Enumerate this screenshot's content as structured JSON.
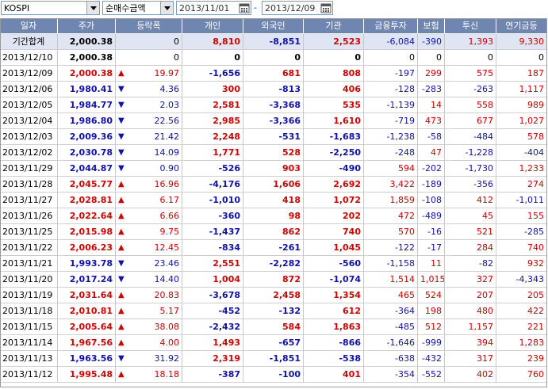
{
  "toolbar": {
    "market": "KOSPI",
    "metric": "순매수금액",
    "date_from": "2013/11/01",
    "separator": "-",
    "date_to": "2013/12/09"
  },
  "columns": [
    "일자",
    "주가",
    "등락폭",
    "개인",
    "외국인",
    "기관",
    "금융투자",
    "보험",
    "투신",
    "연기금등"
  ],
  "colors": {
    "header_bg": "#6f86b0",
    "summary_bg": "#dfe6f2",
    "up": "#d40000",
    "down": "#1010b0"
  },
  "rows": [
    {
      "date": "기간합계",
      "price": "2,000.38",
      "dir": "",
      "chg": "0",
      "ind": "8,810",
      "for": "-8,851",
      "inst": "2,523",
      "fin": "-6,084",
      "ins": "-390",
      "trust": "1,393",
      "pens": "9,330"
    },
    {
      "date": "2013/12/10",
      "price": "2,000.38",
      "dir": "",
      "chg": "0",
      "ind": "0",
      "for": "0",
      "inst": "0",
      "fin": "0",
      "ins": "0",
      "trust": "0",
      "pens": "0"
    },
    {
      "date": "2013/12/09",
      "price": "2,000.38",
      "dir": "up",
      "chg": "19.97",
      "ind": "-1,656",
      "for": "681",
      "inst": "808",
      "fin": "-197",
      "ins": "299",
      "trust": "575",
      "pens": "187"
    },
    {
      "date": "2013/12/06",
      "price": "1,980.41",
      "dir": "down",
      "chg": "4.36",
      "ind": "300",
      "for": "-813",
      "inst": "406",
      "fin": "-128",
      "ins": "-283",
      "trust": "-263",
      "pens": "1,117"
    },
    {
      "date": "2013/12/05",
      "price": "1,984.77",
      "dir": "down",
      "chg": "2.03",
      "ind": "2,581",
      "for": "-3,368",
      "inst": "535",
      "fin": "-1,139",
      "ins": "14",
      "trust": "558",
      "pens": "989"
    },
    {
      "date": "2013/12/04",
      "price": "1,986.80",
      "dir": "down",
      "chg": "22.56",
      "ind": "2,985",
      "for": "-3,366",
      "inst": "1,610",
      "fin": "-719",
      "ins": "473",
      "trust": "677",
      "pens": "1,027"
    },
    {
      "date": "2013/12/03",
      "price": "2,009.36",
      "dir": "down",
      "chg": "21.42",
      "ind": "2,248",
      "for": "-531",
      "inst": "-1,683",
      "fin": "-1,238",
      "ins": "-58",
      "trust": "-484",
      "pens": "578"
    },
    {
      "date": "2013/12/02",
      "price": "2,030.78",
      "dir": "down",
      "chg": "14.09",
      "ind": "1,771",
      "for": "528",
      "inst": "-2,250",
      "fin": "-248",
      "ins": "47",
      "trust": "-1,228",
      "pens": "-404"
    },
    {
      "date": "2013/11/29",
      "price": "2,044.87",
      "dir": "down",
      "chg": "0.90",
      "ind": "-526",
      "for": "903",
      "inst": "-490",
      "fin": "594",
      "ins": "-202",
      "trust": "-1,730",
      "pens": "1,233"
    },
    {
      "date": "2013/11/28",
      "price": "2,045.77",
      "dir": "up",
      "chg": "16.96",
      "ind": "-4,176",
      "for": "1,606",
      "inst": "2,692",
      "fin": "3,422",
      "ins": "-189",
      "trust": "-356",
      "pens": "274"
    },
    {
      "date": "2013/11/27",
      "price": "2,028.81",
      "dir": "up",
      "chg": "6.17",
      "ind": "-1,010",
      "for": "418",
      "inst": "1,072",
      "fin": "1,859",
      "ins": "-108",
      "trust": "412",
      "pens": "-1,011"
    },
    {
      "date": "2013/11/26",
      "price": "2,022.64",
      "dir": "up",
      "chg": "6.66",
      "ind": "-360",
      "for": "98",
      "inst": "202",
      "fin": "472",
      "ins": "-489",
      "trust": "45",
      "pens": "155"
    },
    {
      "date": "2013/11/25",
      "price": "2,015.98",
      "dir": "up",
      "chg": "9.75",
      "ind": "-1,437",
      "for": "862",
      "inst": "740",
      "fin": "570",
      "ins": "-16",
      "trust": "521",
      "pens": "-285"
    },
    {
      "date": "2013/11/22",
      "price": "2,006.23",
      "dir": "up",
      "chg": "12.45",
      "ind": "-834",
      "for": "-261",
      "inst": "1,045",
      "fin": "-122",
      "ins": "-17",
      "trust": "284",
      "pens": "740"
    },
    {
      "date": "2013/11/21",
      "price": "1,993.78",
      "dir": "down",
      "chg": "23.46",
      "ind": "2,551",
      "for": "-2,282",
      "inst": "-560",
      "fin": "-1,158",
      "ins": "11",
      "trust": "-82",
      "pens": "932"
    },
    {
      "date": "2013/11/20",
      "price": "2,017.24",
      "dir": "down",
      "chg": "14.40",
      "ind": "1,004",
      "for": "872",
      "inst": "-1,074",
      "fin": "1,514",
      "ins": "1,015",
      "trust": "327",
      "pens": "-4,343"
    },
    {
      "date": "2013/11/19",
      "price": "2,031.64",
      "dir": "up",
      "chg": "20.83",
      "ind": "-3,678",
      "for": "2,458",
      "inst": "1,354",
      "fin": "465",
      "ins": "524",
      "trust": "207",
      "pens": "205"
    },
    {
      "date": "2013/11/18",
      "price": "2,010.81",
      "dir": "up",
      "chg": "5.17",
      "ind": "-452",
      "for": "-132",
      "inst": "612",
      "fin": "-364",
      "ins": "198",
      "trust": "480",
      "pens": "422"
    },
    {
      "date": "2013/11/15",
      "price": "2,005.64",
      "dir": "up",
      "chg": "38.08",
      "ind": "-2,432",
      "for": "584",
      "inst": "1,863",
      "fin": "-485",
      "ins": "512",
      "trust": "1,157",
      "pens": "221"
    },
    {
      "date": "2013/11/14",
      "price": "1,967.56",
      "dir": "up",
      "chg": "4.00",
      "ind": "1,493",
      "for": "-657",
      "inst": "-866",
      "fin": "-1,646",
      "ins": "-999",
      "trust": "394",
      "pens": "1,283"
    },
    {
      "date": "2013/11/13",
      "price": "1,963.56",
      "dir": "down",
      "chg": "31.92",
      "ind": "2,319",
      "for": "-1,851",
      "inst": "-538",
      "fin": "-638",
      "ins": "-432",
      "trust": "317",
      "pens": "239"
    },
    {
      "date": "2013/11/12",
      "price": "1,995.48",
      "dir": "up",
      "chg": "18.18",
      "ind": "-387",
      "for": "-100",
      "inst": "401",
      "fin": "-354",
      "ins": "-552",
      "trust": "402",
      "pens": "760"
    }
  ]
}
